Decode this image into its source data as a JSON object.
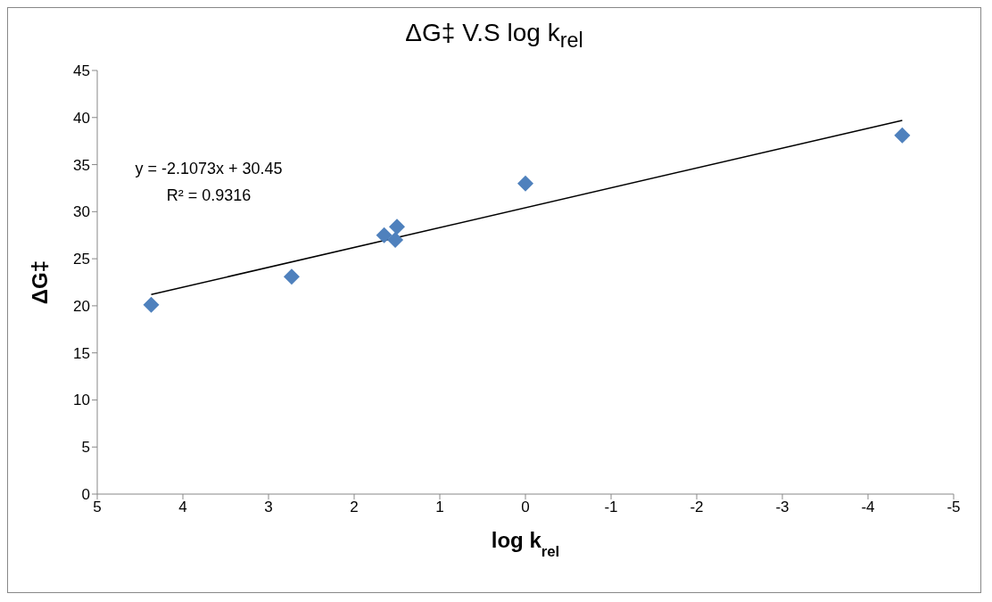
{
  "chart_data": {
    "type": "scatter",
    "title": "ΔG‡ V.S log k$_{rel}$",
    "xlabel": "log k$_{rel}$",
    "ylabel": "ΔG‡",
    "annotations": [
      "y = -2.1073x + 30.45",
      "R² = 0.9316"
    ],
    "xlim": [
      5,
      -5
    ],
    "xticks": [
      5,
      4,
      3,
      2,
      1,
      0,
      -1,
      -2,
      -3,
      -4,
      -5
    ],
    "ylim": [
      0,
      45
    ],
    "yticks": [
      0,
      5,
      10,
      15,
      20,
      25,
      30,
      35,
      40,
      45
    ],
    "series": [
      {
        "color": "#4f81bd",
        "marker": "diamond",
        "x": [
          4.37,
          2.73,
          1.65,
          1.52,
          1.5,
          0,
          -4.4
        ],
        "values": [
          20.1,
          23.1,
          27.5,
          27.0,
          28.4,
          33.0,
          38.1
        ]
      },
      {
        "type": "line",
        "color": "#000000",
        "marker": "none",
        "line_style": "solid",
        "x": [
          4.37,
          -4.4
        ],
        "values": [
          21.2,
          39.7
        ]
      }
    ]
  }
}
